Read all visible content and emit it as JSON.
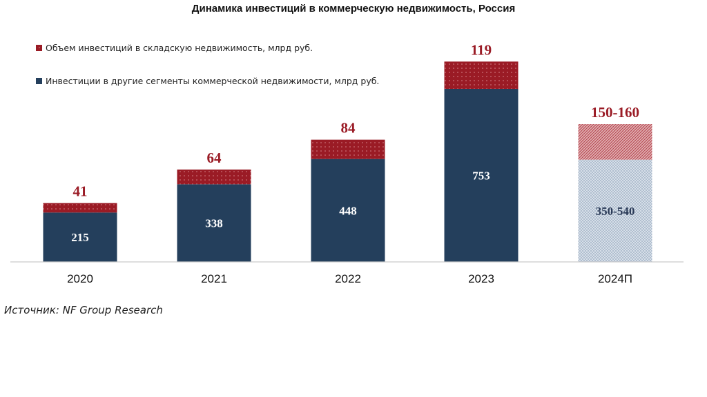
{
  "chart_data": {
    "type": "bar",
    "stacked": true,
    "title": "Динамика инвестиций в коммерческую недвижимость, Россия",
    "categories": [
      "2020",
      "2021",
      "2022",
      "2023",
      "2024П"
    ],
    "series": [
      {
        "name": "Инвестиции в другие сегменты коммерческой недвижимости, млрд руб.",
        "values": [
          215,
          338,
          448,
          753,
          445
        ],
        "labels": [
          "215",
          "338",
          "448",
          "753",
          "350-540"
        ],
        "color": "#243f5c"
      },
      {
        "name": "Объем инвестиций в складскую недвижимость, млрд руб.",
        "values": [
          41,
          64,
          84,
          119,
          155
        ],
        "labels": [
          "41",
          "64",
          "84",
          "119",
          "150-160"
        ],
        "color": "#9a1b25"
      }
    ],
    "forecast_index": 4,
    "ylim": [
      0,
      960
    ],
    "legend_position": "top-left",
    "grid": false
  },
  "source": "Источник: NF Group Research"
}
